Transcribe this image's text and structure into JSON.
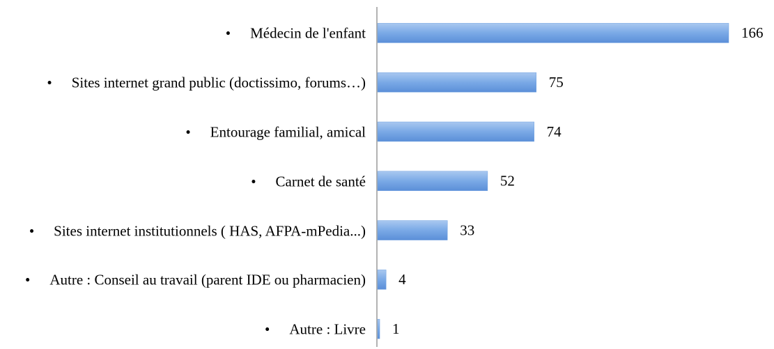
{
  "chart_data": {
    "type": "hbar",
    "categories": [
      "Médecin de l'enfant",
      "Sites internet grand public (doctissimo, forums…)",
      "Entourage familial, amical",
      "Carnet de santé",
      "Sites internet institutionnels ( HAS, AFPA-mPedia...)",
      "Autre : Conseil au travail (parent IDE ou pharmacien)",
      "Autre : Livre"
    ],
    "values": [
      166,
      75,
      74,
      52,
      33,
      4,
      1
    ],
    "color": "#6d9fe0"
  }
}
